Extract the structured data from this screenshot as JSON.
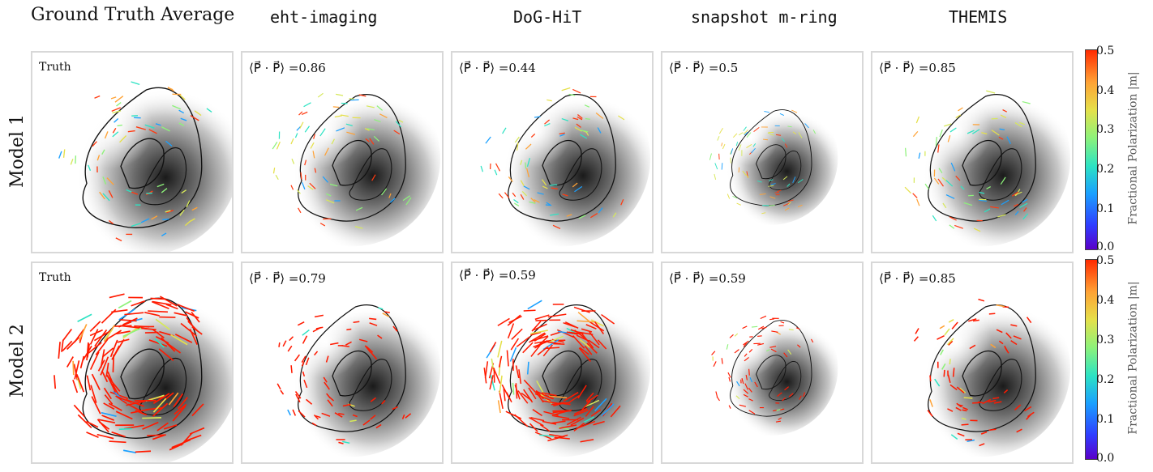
{
  "columns": [
    {
      "title": "Ground Truth Average",
      "font": "serif"
    },
    {
      "title": "eht-imaging",
      "font": "mono"
    },
    {
      "title": "DoG-HiT",
      "font": "mono"
    },
    {
      "title": "snapshot m-ring",
      "font": "mono"
    },
    {
      "title": "THEMIS",
      "font": "mono"
    }
  ],
  "rows": [
    {
      "label": "Model 1",
      "panels": [
        {
          "label": "Truth"
        },
        {
          "label": "⟨P⃗ · P⃗⟩ =0.86"
        },
        {
          "label": "⟨P⃗ · P⃗⟩ =0.44"
        },
        {
          "label": "⟨P⃗ · P⃗⟩ =0.5"
        },
        {
          "label": "⟨P⃗ · P⃗⟩ =0.85"
        }
      ]
    },
    {
      "label": "Model 2",
      "panels": [
        {
          "label": "Truth"
        },
        {
          "label": "⟨P⃗ · P⃗⟩ =0.79"
        },
        {
          "label": "⟨P⃗ · P⃗⟩ =0.59"
        },
        {
          "label": "⟨P⃗ · P⃗⟩ =0.59"
        },
        {
          "label": "⟨P⃗ · P⃗⟩ =0.85"
        }
      ]
    }
  ],
  "colorbar": {
    "title": "Fractional Polarization |m|",
    "ticks": [
      "0.0",
      "0.1",
      "0.2",
      "0.3",
      "0.4",
      "0.5"
    ],
    "range": [
      0.0,
      0.5
    ]
  }
}
